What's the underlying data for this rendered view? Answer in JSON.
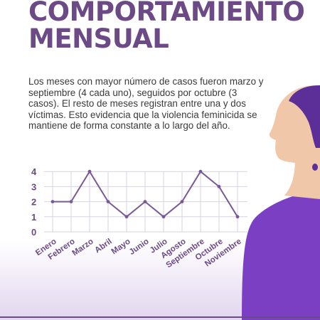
{
  "header": {
    "title_line1": "COMPORTAMIENTO",
    "title_line2": "MENSUAL"
  },
  "description": "Los meses con mayor número de casos fueron marzo y septiembre (4 cada uno), seguidos por octubre (3 casos). El resto de meses registran entre una y dos víctimas. Esto evidencia que la violencia feminicida se mantiene de forma constante a lo largo del año.",
  "colors": {
    "accent": "#6b4a86",
    "line": "#7a5a96",
    "grid": "#d8d2e0",
    "text": "#3a3a3a",
    "figure_purple": "#7b3fc4",
    "figure_hair": "#5b2e98",
    "figure_skin": "#f0c7a8"
  },
  "chart_data": {
    "type": "line",
    "title": "",
    "xlabel": "",
    "ylabel": "",
    "categories": [
      "Enero",
      "Febrero",
      "Marzo",
      "Abril",
      "Mayo",
      "Junio",
      "Julio",
      "Agosto",
      "Septiembre",
      "Octubre",
      "Noviembre"
    ],
    "series": [
      {
        "values": [
          2,
          2,
          4,
          2,
          1,
          2,
          1,
          2,
          4,
          3,
          1
        ]
      }
    ],
    "ylim": [
      0,
      4
    ],
    "yticks": [
      0,
      1,
      2,
      3,
      4
    ],
    "grid": true,
    "legend": "none"
  }
}
